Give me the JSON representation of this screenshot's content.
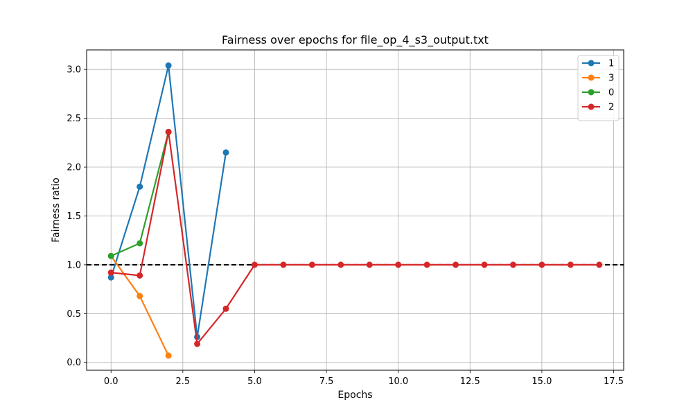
{
  "chart_data": {
    "type": "line",
    "title": "Fairness over epochs for file_op_4_s3_output.txt",
    "xlabel": "Epochs",
    "ylabel": "Fairness ratio",
    "xlim": [
      -0.85,
      17.85
    ],
    "ylim": [
      -0.08,
      3.2
    ],
    "xticks": [
      0.0,
      2.5,
      5.0,
      7.5,
      10.0,
      12.5,
      15.0,
      17.5
    ],
    "xtick_labels": [
      "0.0",
      "2.5",
      "5.0",
      "7.5",
      "10.0",
      "12.5",
      "15.0",
      "17.5"
    ],
    "yticks": [
      0.0,
      0.5,
      1.0,
      1.5,
      2.0,
      2.5,
      3.0
    ],
    "ytick_labels": [
      "0.0",
      "0.5",
      "1.0",
      "1.5",
      "2.0",
      "2.5",
      "3.0"
    ],
    "grid": true,
    "legend_position": "top-right",
    "reference_line": {
      "y": 1.0,
      "style": "dashed",
      "color": "#000000"
    },
    "series": [
      {
        "name": "1",
        "color": "#1f77b4",
        "x": [
          0,
          1,
          2,
          3,
          4
        ],
        "y": [
          0.87,
          1.8,
          3.04,
          0.26,
          2.15
        ]
      },
      {
        "name": "3",
        "color": "#ff7f0e",
        "x": [
          0,
          1,
          2
        ],
        "y": [
          1.09,
          0.68,
          0.07
        ]
      },
      {
        "name": "0",
        "color": "#2ca02c",
        "x": [
          0,
          1,
          2
        ],
        "y": [
          1.09,
          1.22,
          2.36
        ]
      },
      {
        "name": "2",
        "color": "#d62728",
        "x": [
          0,
          1,
          2,
          3,
          4,
          5,
          6,
          7,
          8,
          9,
          10,
          11,
          12,
          13,
          14,
          15,
          16,
          17
        ],
        "y": [
          0.92,
          0.89,
          2.36,
          0.19,
          0.55,
          1.0,
          1.0,
          1.0,
          1.0,
          1.0,
          1.0,
          1.0,
          1.0,
          1.0,
          1.0,
          1.0,
          1.0,
          1.0
        ]
      }
    ]
  }
}
